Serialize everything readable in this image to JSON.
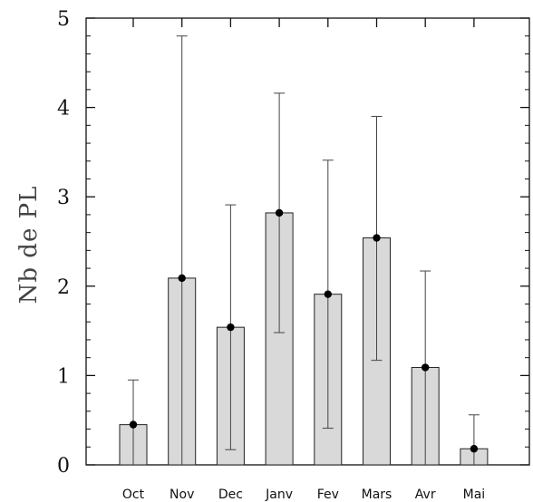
{
  "chart_data": {
    "type": "bar",
    "title": "",
    "xlabel": "",
    "ylabel": "Nb de PL",
    "categories": [
      "Oct",
      "Nov",
      "Dec",
      "Janv",
      "Fev",
      "Mars",
      "Avr",
      "Mai"
    ],
    "values": [
      0.45,
      2.09,
      1.54,
      2.82,
      1.91,
      2.54,
      1.09,
      0.18
    ],
    "error_bars": {
      "lower": [
        0.0,
        0.0,
        0.17,
        1.48,
        0.41,
        1.17,
        0.0,
        0.0
      ],
      "upper": [
        0.95,
        4.8,
        2.91,
        4.16,
        3.41,
        3.9,
        2.17,
        0.56
      ]
    },
    "ylim": [
      0,
      5
    ],
    "yticks": [
      0,
      1,
      2,
      3,
      4,
      5
    ],
    "grid": false,
    "legend": "none",
    "colors": {
      "bar_fill": "#d9d9d9",
      "bar_stroke": "#222222",
      "marker": "#000000",
      "error_bar": "#444444",
      "axis": "#111111"
    }
  }
}
